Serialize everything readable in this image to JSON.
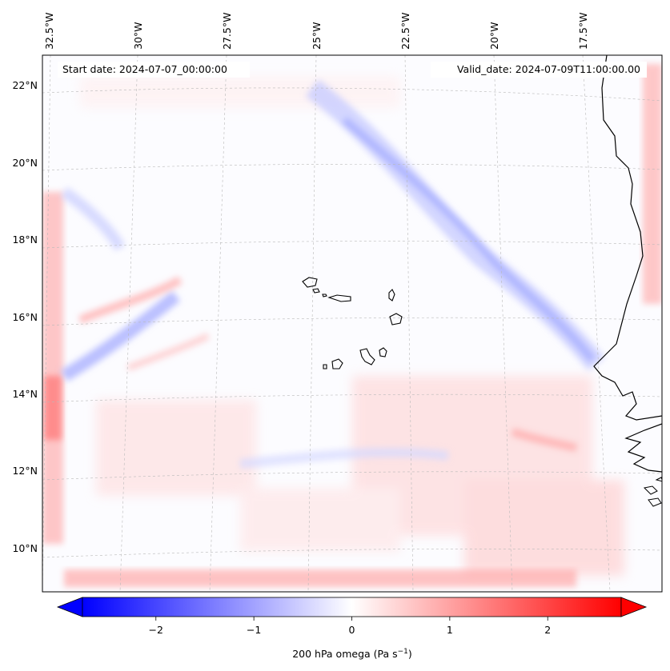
{
  "header": {
    "start_date": "Start date: 2024-07-07_00:00:00",
    "valid_date": "Valid_date: 2024-07-09T11:00:00.00"
  },
  "map": {
    "projection": "Lambert conformal",
    "lon_labels": [
      "32.5°W",
      "30°W",
      "27.5°W",
      "25°W",
      "22.5°W",
      "20°W",
      "17.5°W"
    ],
    "lat_labels": [
      "22°N",
      "20°N",
      "18°N",
      "16°N",
      "14°N",
      "12°N",
      "10°N"
    ],
    "features": [
      "Cape Verde islands",
      "West African coastline (Mauritania, Senegal, Guinea-Bissau)"
    ]
  },
  "colorbar": {
    "label_prefix": "200 hPa omega (Pa s",
    "label_exp": "−1",
    "label_suffix": ")",
    "ticks": [
      "−2",
      "−1",
      "0",
      "1",
      "2"
    ],
    "range": [
      -2.75,
      2.75
    ],
    "colormap": "bwr",
    "extend": "both"
  },
  "colors": {
    "negative": "#0000ff",
    "neutral": "#ffffff",
    "positive": "#ff0000"
  }
}
